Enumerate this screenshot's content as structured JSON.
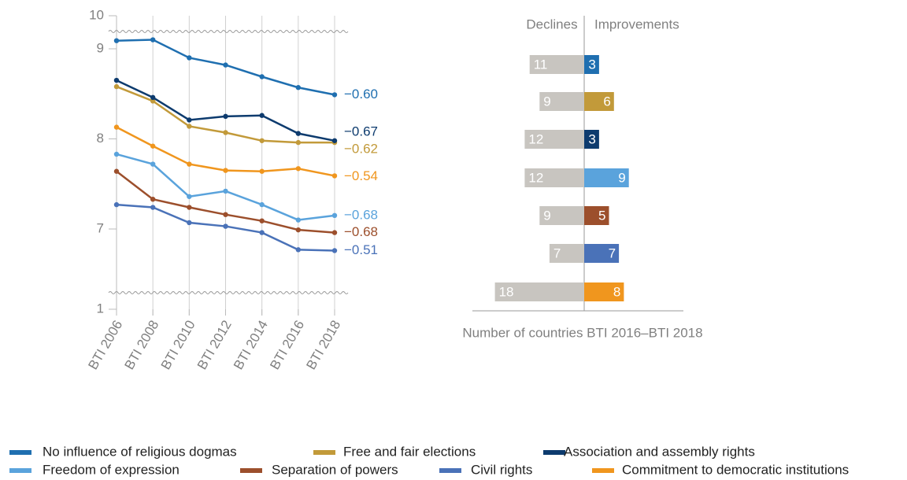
{
  "chart_data": [
    {
      "type": "line",
      "categories": [
        "BTI 2006",
        "BTI 2008",
        "BTI 2010",
        "BTI 2012",
        "BTI 2014",
        "BTI 2016",
        "BTI 2018"
      ],
      "ylim": [
        1,
        10
      ],
      "yticks": [
        1,
        7,
        8,
        9,
        10
      ],
      "axis_break": true,
      "grid": true,
      "series": [
        {
          "name": "No influence of religious dogmas",
          "color": "#1f6fb0",
          "values": [
            9.09,
            9.1,
            8.9,
            8.82,
            8.69,
            8.57,
            8.49
          ],
          "change": -0.6,
          "change_label": "−0.60"
        },
        {
          "name": "Free and fair elections",
          "color": "#c29a3a",
          "values": [
            8.58,
            8.42,
            8.14,
            8.07,
            7.98,
            7.96,
            7.96
          ],
          "change": -0.62,
          "change_label": "−0.62"
        },
        {
          "name": "Association and assembly rights",
          "color": "#0d3b6e",
          "values": [
            8.65,
            8.46,
            8.21,
            8.25,
            8.26,
            8.06,
            7.98
          ],
          "change": -0.67,
          "change_label": "−0.67"
        },
        {
          "name": "Freedom of expression",
          "color": "#5aa3dc",
          "values": [
            7.83,
            7.72,
            7.36,
            7.42,
            7.27,
            7.1,
            7.15
          ],
          "change": -0.68,
          "change_label": "−0.68"
        },
        {
          "name": "Separation of powers",
          "color": "#9c4f2c",
          "values": [
            7.64,
            7.33,
            7.24,
            7.16,
            7.09,
            6.99,
            6.96
          ],
          "change": -0.68,
          "change_label": "−0.68"
        },
        {
          "name": "Civil rights",
          "color": "#4a72b8",
          "values": [
            7.27,
            7.24,
            7.07,
            7.03,
            6.96,
            6.77,
            6.76
          ],
          "change": -0.51,
          "change_label": "−0.51"
        },
        {
          "name": "Commitment to democratic institutions",
          "color": "#f0961e",
          "values": [
            8.13,
            7.92,
            7.72,
            7.65,
            7.64,
            7.67,
            7.59
          ],
          "change": -0.54,
          "change_label": "−0.54"
        }
      ]
    },
    {
      "type": "diverging-bar",
      "xlabel": "Number of countries BTI 2016–BTI 2018",
      "series": [
        {
          "name": "Declines",
          "color": "#c8c5c0",
          "values": [
            11,
            9,
            12,
            12,
            9,
            7,
            18
          ]
        },
        {
          "name": "Improvements",
          "colors": [
            "#1f6fb0",
            "#c29a3a",
            "#0d3b6e",
            "#5aa3dc",
            "#9c4f2c",
            "#4a72b8",
            "#f0961e"
          ],
          "values": [
            3,
            6,
            3,
            9,
            5,
            7,
            8
          ]
        }
      ]
    }
  ]
}
